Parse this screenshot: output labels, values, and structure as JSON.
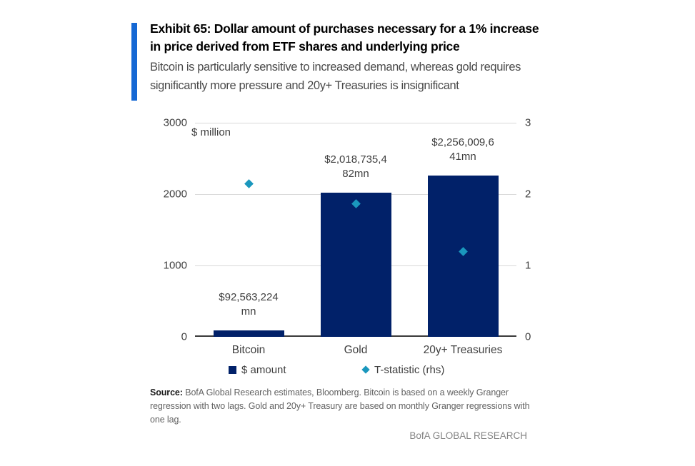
{
  "header": {
    "title": "Exhibit 65: Dollar amount of purchases necessary for a 1% increase in price derived from ETF shares and underlying price",
    "subtitle": "Bitcoin is particularly sensitive to increased demand, whereas gold requires significantly more pressure and 20y+ Treasuries is insignificant",
    "accent_color": "#1568d4"
  },
  "chart_data": {
    "type": "bar",
    "unit_label": "$ million",
    "categories": [
      "Bitcoin",
      "Gold",
      "20y+ Treasuries"
    ],
    "series": [
      {
        "name": "$ amount",
        "type": "bar",
        "axis": "left",
        "color": "#012169",
        "values": [
          92.6,
          2018.7,
          2256.0
        ]
      },
      {
        "name": "T-statistic  (rhs)",
        "type": "scatter",
        "marker": "diamond",
        "axis": "right",
        "color": "#1a97bd",
        "values": [
          2.15,
          1.87,
          1.2
        ]
      }
    ],
    "bar_labels": [
      {
        "text": "$92,563,224mn",
        "line1": "$92,563,224",
        "line2": "mn"
      },
      {
        "text": "$2,018,735,482mn",
        "line1": "$2,018,735,4",
        "line2": "82mn"
      },
      {
        "text": "$2,256,009,641mn",
        "line1": "$2,256,009,6",
        "line2": "41mn"
      }
    ],
    "left_axis": {
      "ticks": [
        3000,
        2000,
        1000,
        0
      ],
      "range": [
        0,
        3000
      ]
    },
    "right_axis": {
      "ticks": [
        3,
        2,
        1,
        0
      ],
      "range": [
        0,
        3
      ]
    },
    "grid": true,
    "legend_position": "bottom"
  },
  "footer": {
    "source_label": "Source:",
    "source_text": " BofA Global Research estimates, Bloomberg. Bitcoin is based on a weekly Granger regression with two lags. Gold and 20y+ Treasury are based on monthly Granger regressions with one lag.",
    "brand": "BofA GLOBAL RESEARCH"
  }
}
